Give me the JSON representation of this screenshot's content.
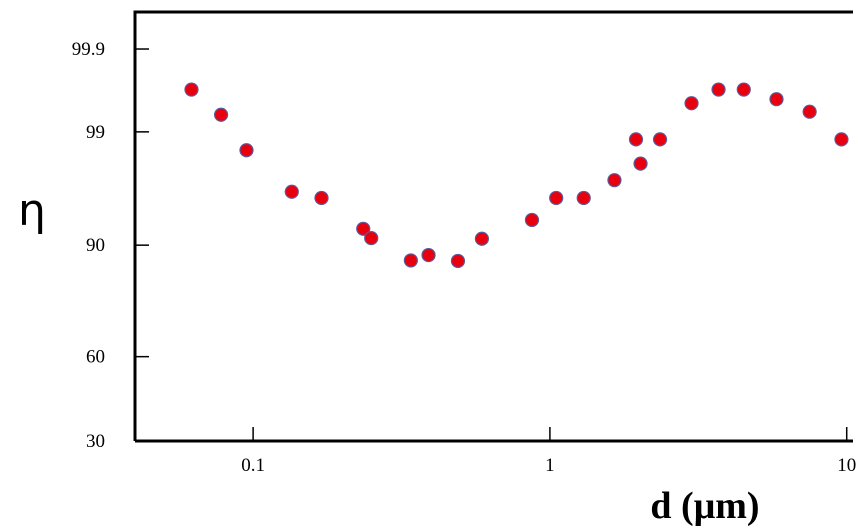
{
  "chart_data": {
    "type": "scatter",
    "xlabel": "d (μm)",
    "ylabel": "η",
    "x_scale": "log",
    "y_scale": "probit",
    "xlim": [
      0.04,
      10.5
    ],
    "ylim": [
      30,
      99.97
    ],
    "x_ticks": [
      {
        "value": 0.1,
        "label": "0.1"
      },
      {
        "value": 1,
        "label": "1"
      },
      {
        "value": 10,
        "label": "10"
      }
    ],
    "y_ticks": [
      {
        "value": 30,
        "label": "30"
      },
      {
        "value": 60,
        "label": "60"
      },
      {
        "value": 90,
        "label": "90"
      },
      {
        "value": 99,
        "label": "99"
      },
      {
        "value": 99.9,
        "label": "99.9"
      }
    ],
    "grid": false,
    "marker_color": "#e8000f",
    "marker_edge_color": "#5a5a9a",
    "series": [
      {
        "name": "",
        "points": [
          {
            "x": 0.062,
            "y": 99.67
          },
          {
            "x": 0.078,
            "y": 99.35
          },
          {
            "x": 0.095,
            "y": 98.45
          },
          {
            "x": 0.135,
            "y": 96.2
          },
          {
            "x": 0.17,
            "y": 95.7
          },
          {
            "x": 0.235,
            "y": 92.4
          },
          {
            "x": 0.25,
            "y": 91.1
          },
          {
            "x": 0.34,
            "y": 87.3
          },
          {
            "x": 0.39,
            "y": 88.3
          },
          {
            "x": 0.49,
            "y": 87.2
          },
          {
            "x": 0.59,
            "y": 91.0
          },
          {
            "x": 0.87,
            "y": 93.5
          },
          {
            "x": 1.05,
            "y": 95.7
          },
          {
            "x": 1.3,
            "y": 95.7
          },
          {
            "x": 1.65,
            "y": 97.0
          },
          {
            "x": 1.95,
            "y": 98.8
          },
          {
            "x": 2.02,
            "y": 97.9
          },
          {
            "x": 2.35,
            "y": 98.8
          },
          {
            "x": 3.0,
            "y": 99.52
          },
          {
            "x": 3.7,
            "y": 99.67
          },
          {
            "x": 4.5,
            "y": 99.67
          },
          {
            "x": 5.8,
            "y": 99.57
          },
          {
            "x": 7.5,
            "y": 99.4
          },
          {
            "x": 9.6,
            "y": 98.8
          }
        ]
      }
    ]
  }
}
